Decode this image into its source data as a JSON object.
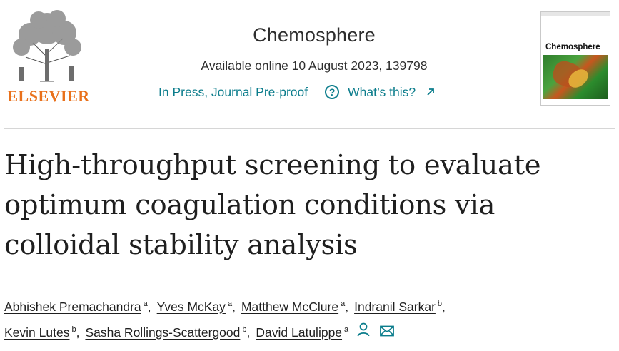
{
  "publisher": {
    "name": "ELSEVIER"
  },
  "journal": {
    "title": "Chemosphere",
    "availability": "Available online 10 August 2023, 139798",
    "status": "In Press, Journal Pre-proof",
    "help_label": "What’s this?"
  },
  "cover": {
    "title": "Chemosphere"
  },
  "article": {
    "title_lines": [
      "High-throughput screening to evaluate",
      "optimum coagulation conditions via",
      "colloidal stability analysis"
    ]
  },
  "authors": [
    {
      "name": "Abhishek Premachandra",
      "aff": "a"
    },
    {
      "name": "Yves McKay",
      "aff": "a"
    },
    {
      "name": "Matthew McClure",
      "aff": "a"
    },
    {
      "name": "Indranil Sarkar",
      "aff": "b"
    },
    {
      "name": "Kevin Lutes",
      "aff": "b"
    },
    {
      "name": "Sasha Rollings-Scattergood",
      "aff": "b"
    },
    {
      "name": "David Latulippe",
      "aff": "a"
    }
  ],
  "colors": {
    "accent": "#0c7d8c",
    "brand": "#e9711c"
  },
  "icons": [
    "elsevier-tree-logo",
    "help-circle-icon",
    "external-arrow-icon",
    "person-icon",
    "envelope-icon"
  ]
}
